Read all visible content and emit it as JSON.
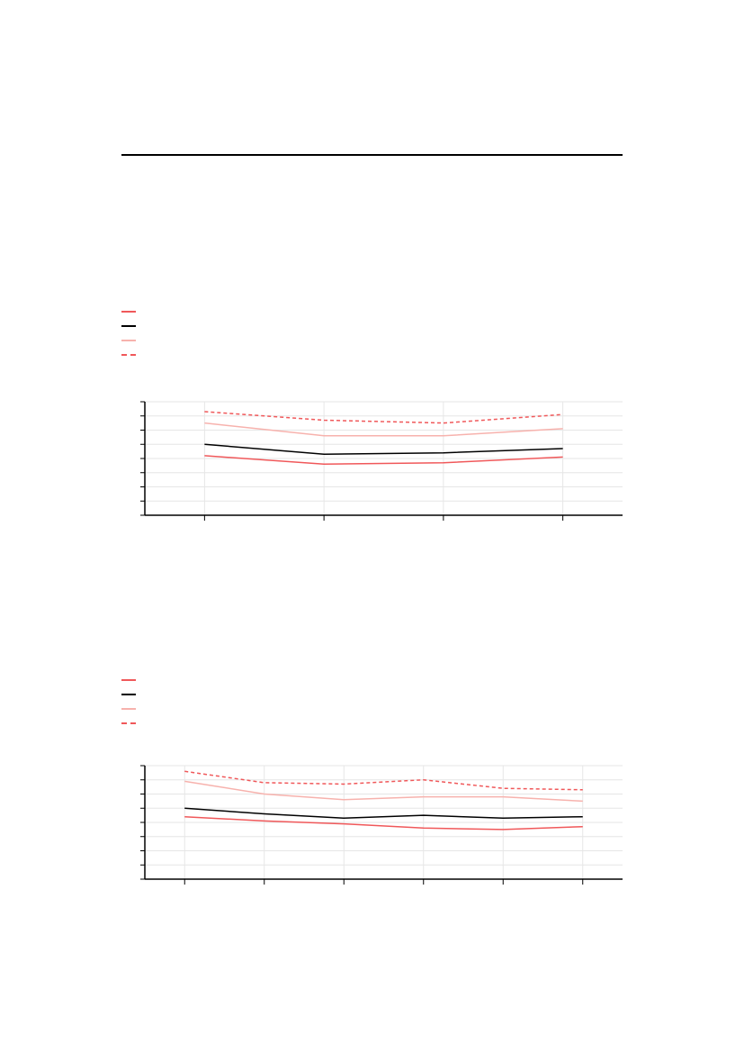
{
  "colors": {
    "series_a": "#f0585a",
    "series_b": "#000000",
    "series_c": "#f7b2ad",
    "series_d": "#f0585a",
    "grid": "#e6e6e6",
    "axis": "#000000"
  },
  "chart_data": [
    {
      "type": "line",
      "title": "",
      "xlabel": "",
      "ylabel": "",
      "x": [
        1,
        2,
        3,
        4
      ],
      "xlim": [
        0.5,
        4.5
      ],
      "ylim": [
        0,
        8
      ],
      "grid": true,
      "legend_placement": "top-left",
      "series": [
        {
          "values": [
            4.2,
            3.6,
            3.7,
            4.1
          ],
          "style": "solid",
          "color_key": "series_a"
        },
        {
          "values": [
            5.0,
            4.3,
            4.4,
            4.7
          ],
          "style": "solid",
          "color_key": "series_b"
        },
        {
          "values": [
            6.5,
            5.6,
            5.6,
            6.1
          ],
          "style": "solid",
          "color_key": "series_c"
        },
        {
          "values": [
            7.3,
            6.7,
            6.5,
            7.1
          ],
          "style": "dashed",
          "color_key": "series_d"
        }
      ]
    },
    {
      "type": "line",
      "title": "",
      "xlabel": "",
      "ylabel": "",
      "x": [
        1,
        2,
        3,
        4,
        5,
        6
      ],
      "xlim": [
        0.5,
        6.5
      ],
      "ylim": [
        0,
        8
      ],
      "grid": true,
      "legend_placement": "top-left",
      "series": [
        {
          "values": [
            4.4,
            4.1,
            3.9,
            3.6,
            3.5,
            3.7
          ],
          "style": "solid",
          "color_key": "series_a"
        },
        {
          "values": [
            5.0,
            4.6,
            4.3,
            4.5,
            4.3,
            4.4
          ],
          "style": "solid",
          "color_key": "series_b"
        },
        {
          "values": [
            6.9,
            6.0,
            5.6,
            5.8,
            5.8,
            5.5
          ],
          "style": "solid",
          "color_key": "series_c"
        },
        {
          "values": [
            7.6,
            6.8,
            6.7,
            7.0,
            6.4,
            6.3
          ],
          "style": "dashed",
          "color_key": "series_d"
        }
      ]
    }
  ]
}
